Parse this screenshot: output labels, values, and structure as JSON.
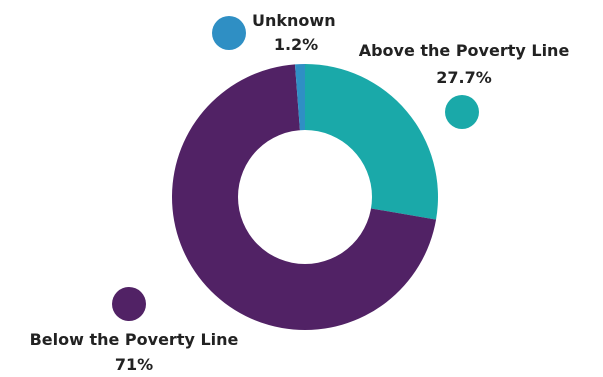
{
  "chart_data": {
    "type": "pie",
    "variant": "donut",
    "title": "",
    "slices": [
      {
        "label": "Above the Poverty Line",
        "value": 27.7,
        "value_label": "27.7%",
        "color": "#1aa9a9"
      },
      {
        "label": "Below the Poverty Line",
        "value": 71,
        "value_label": "71%",
        "color": "#512265"
      },
      {
        "label": "Unknown",
        "value": 1.2,
        "value_label": "1.2%",
        "color": "#2f8fc4"
      }
    ],
    "legend": "callout markers beside each label"
  }
}
